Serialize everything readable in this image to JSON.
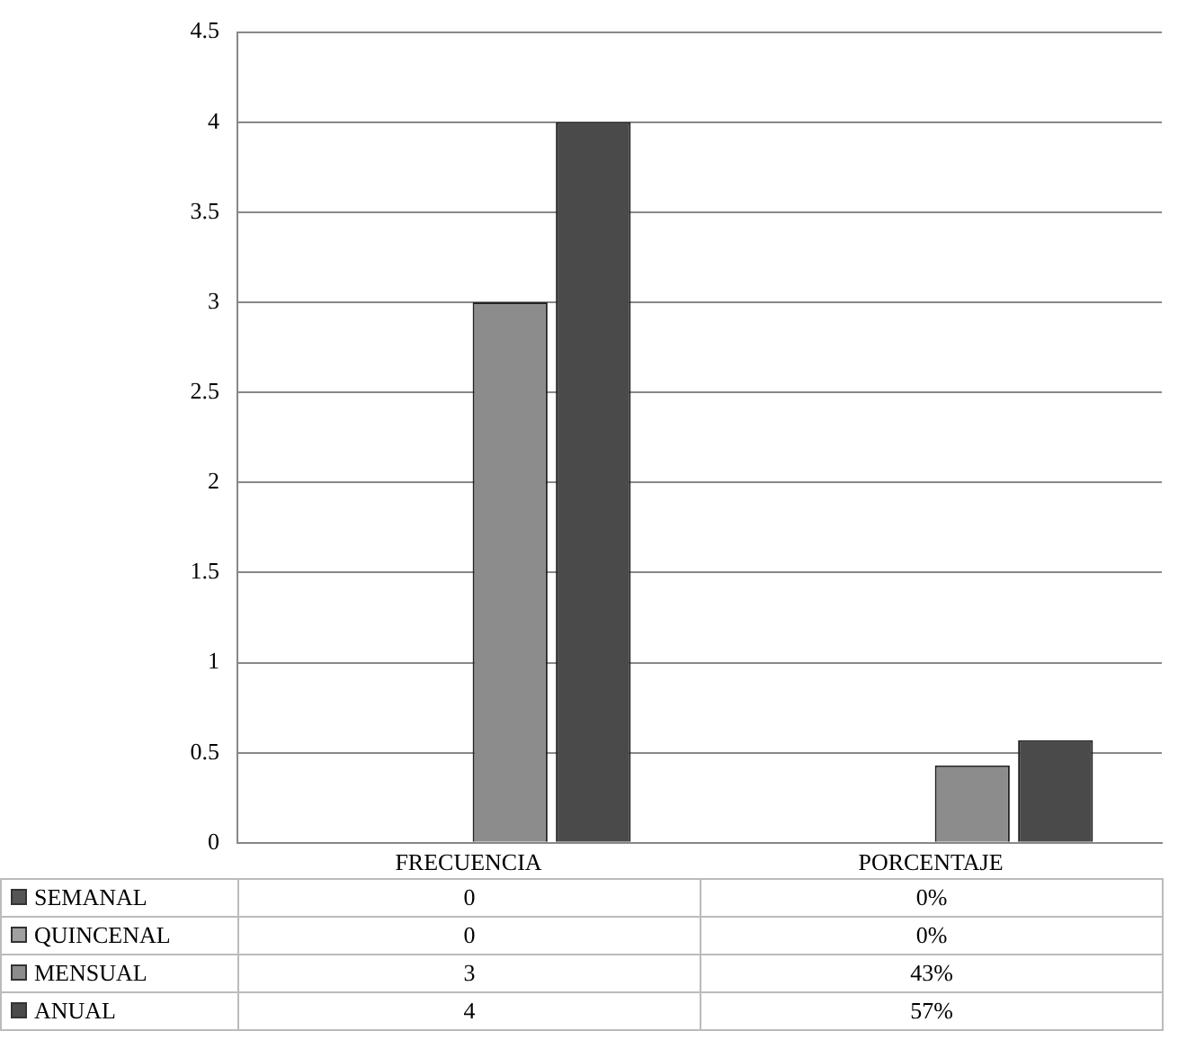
{
  "chart_data": {
    "type": "bar",
    "categories": [
      "FRECUENCIA",
      "PORCENTAJE"
    ],
    "series": [
      {
        "name": "SEMANAL",
        "color": "#555555",
        "values": [
          0,
          0
        ],
        "value_labels": [
          "0",
          "0%"
        ]
      },
      {
        "name": "QUINCENAL",
        "color": "#a0a0a0",
        "values": [
          0,
          0
        ],
        "value_labels": [
          "0",
          "0%"
        ]
      },
      {
        "name": "MENSUAL",
        "color": "#8c8c8c",
        "values": [
          3,
          0.43
        ],
        "value_labels": [
          "3",
          "43%"
        ]
      },
      {
        "name": "ANUAL",
        "color": "#4a4a4a",
        "values": [
          4,
          0.57
        ],
        "value_labels": [
          "4",
          "57%"
        ]
      }
    ],
    "ylim": [
      0,
      4.5
    ],
    "yticks": [
      0,
      0.5,
      1,
      1.5,
      2,
      2.5,
      3,
      3.5,
      4,
      4.5
    ],
    "grid": "y",
    "legend": "bottom"
  }
}
